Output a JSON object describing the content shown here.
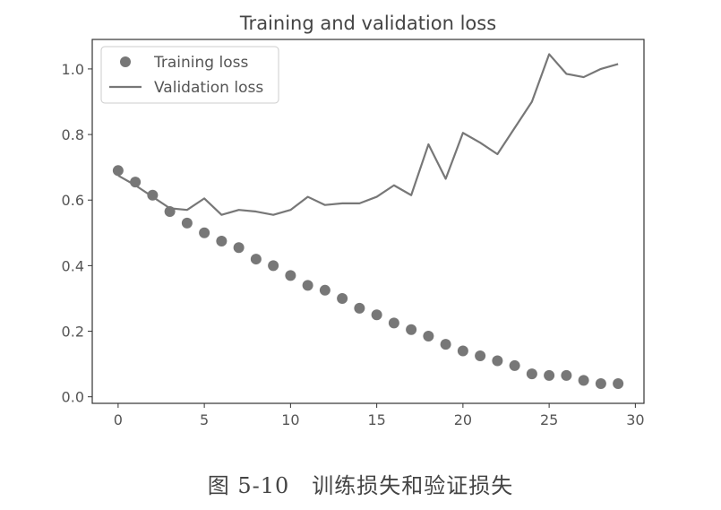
{
  "caption": "图 5-10　训练损失和验证损失",
  "chart_data": {
    "type": "line",
    "title": "Training and validation loss",
    "xlabel": "",
    "ylabel": "",
    "xlim": [
      -1.5,
      30.5
    ],
    "ylim": [
      -0.02,
      1.09
    ],
    "xticks": [
      0,
      5,
      10,
      15,
      20,
      25,
      30
    ],
    "yticks": [
      0.0,
      0.2,
      0.4,
      0.6,
      0.8,
      1.0
    ],
    "xtick_labels": [
      "0",
      "5",
      "10",
      "15",
      "20",
      "25",
      "30"
    ],
    "ytick_labels": [
      "0.0",
      "0.2",
      "0.4",
      "0.6",
      "0.8",
      "1.0"
    ],
    "legend_position": "top-left",
    "grid": false,
    "x": [
      0,
      1,
      2,
      3,
      4,
      5,
      6,
      7,
      8,
      9,
      10,
      11,
      12,
      13,
      14,
      15,
      16,
      17,
      18,
      19,
      20,
      21,
      22,
      23,
      24,
      25,
      26,
      27,
      28,
      29
    ],
    "series": [
      {
        "name": "Training loss",
        "style": "markers",
        "color": "#777777",
        "values": [
          0.69,
          0.655,
          0.615,
          0.565,
          0.53,
          0.5,
          0.475,
          0.455,
          0.42,
          0.4,
          0.37,
          0.34,
          0.325,
          0.3,
          0.27,
          0.25,
          0.225,
          0.205,
          0.185,
          0.16,
          0.14,
          0.125,
          0.11,
          0.095,
          0.07,
          0.065,
          0.065,
          0.05,
          0.04,
          0.04
        ]
      },
      {
        "name": "Validation loss",
        "style": "line",
        "color": "#777777",
        "values": [
          0.675,
          0.645,
          0.61,
          0.575,
          0.57,
          0.605,
          0.555,
          0.57,
          0.565,
          0.555,
          0.57,
          0.61,
          0.585,
          0.59,
          0.59,
          0.61,
          0.645,
          0.615,
          0.77,
          0.665,
          0.805,
          0.775,
          0.74,
          0.82,
          0.9,
          1.045,
          0.985,
          0.975,
          1.0,
          1.015
        ]
      }
    ]
  }
}
